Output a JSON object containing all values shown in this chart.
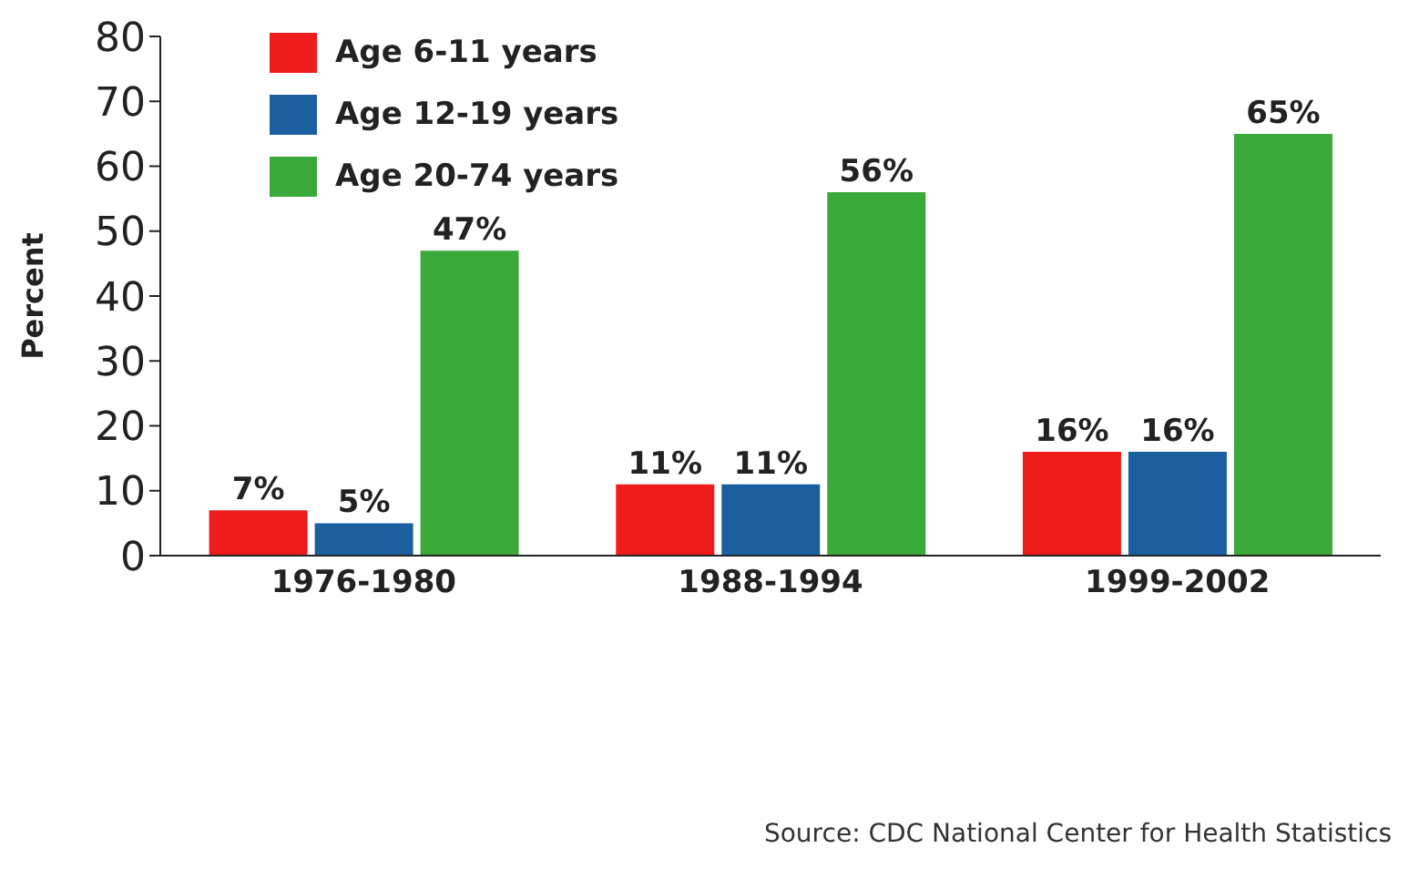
{
  "chart_data": {
    "type": "bar",
    "ylabel": "Percent",
    "categories": [
      "1976-1980",
      "1988-1994",
      "1999-2002"
    ],
    "series": [
      {
        "name": "Age 6-11 years",
        "color": "#ee1c1c",
        "values": [
          7,
          11,
          16
        ],
        "value_labels": [
          "7%",
          "11%",
          "16%"
        ]
      },
      {
        "name": "Age 12-19 years",
        "color": "#1a60a0",
        "values": [
          5,
          11,
          16
        ],
        "value_labels": [
          "5%",
          "11%",
          "16%"
        ]
      },
      {
        "name": "Age 20-74 years",
        "color": "#3aa93a",
        "values": [
          47,
          56,
          65
        ],
        "value_labels": [
          "47%",
          "56%",
          "65%"
        ]
      }
    ],
    "ylim": [
      0,
      80
    ],
    "yticks": [
      0,
      10,
      20,
      30,
      40,
      50,
      60,
      70,
      80
    ],
    "grid": false,
    "legend": "top left",
    "annotations": [
      "Source: CDC National Center for Health Statistics"
    ]
  }
}
